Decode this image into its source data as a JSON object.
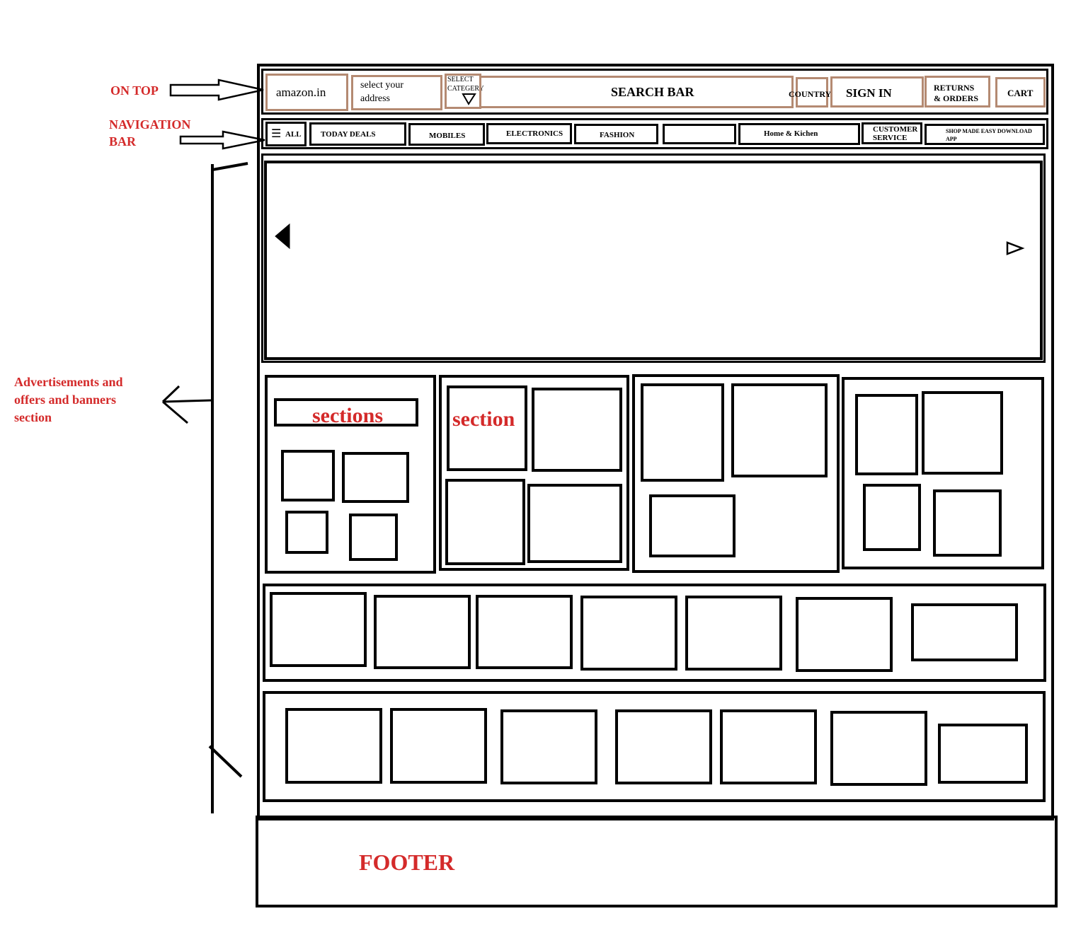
{
  "annotations": {
    "on_top": "ON TOP",
    "nav_line1": "NAVIGATION",
    "nav_line2": "BAR",
    "ads_line1": "Advertisements and",
    "ads_line2": "offers and banners",
    "ads_line3": "section"
  },
  "top_bar": {
    "logo": "amazon.in",
    "address_line1": "select your",
    "address_line2": "address",
    "category_line1": "SELECT",
    "category_line2": "CATEGERY",
    "search": "SEARCH BAR",
    "country": "COUNTRY",
    "sign_in": "SIGN IN",
    "returns_line1": "RETURNS",
    "returns_line2": "& ORDERS",
    "cart": "CART"
  },
  "nav_bar": {
    "all": "ALL",
    "items": [
      "TODAY DEALS",
      "MOBILES",
      "ELECTRONICS",
      "FASHION",
      "",
      "Home & Kichen"
    ],
    "customer_line1": "CUSTOMER",
    "customer_line2": "SERVICE",
    "app_line1": "SHOP MADE EASY DOWNLOAD",
    "app_line2": "APP"
  },
  "sections": {
    "label_1": "sections",
    "label_2": "section"
  },
  "footer": {
    "label": "FOOTER"
  },
  "colors": {
    "annotation_red": "#d42a2a",
    "header_box_brown": "#b48a72",
    "outline_black": "#000000"
  }
}
